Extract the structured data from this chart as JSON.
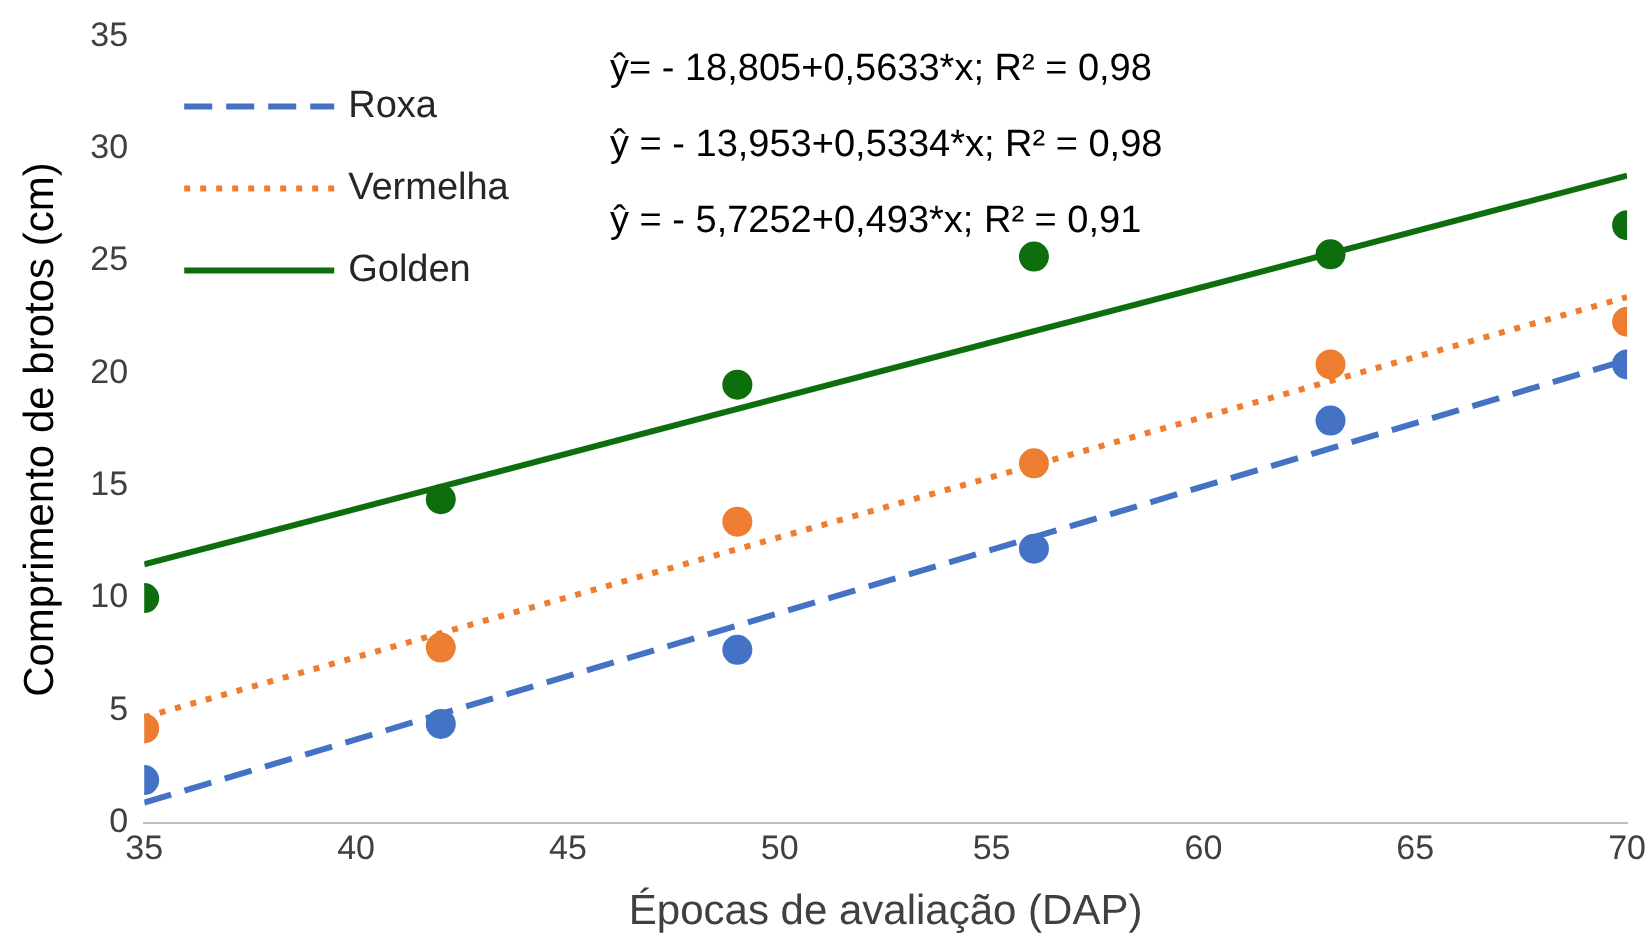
{
  "chart_data": {
    "type": "scatter",
    "xlabel": "Épocas de avaliação (DAP)",
    "ylabel": "Comprimento de brotos (cm)",
    "xlim": [
      35,
      70
    ],
    "xticks": [
      35,
      40,
      45,
      50,
      55,
      60,
      65,
      70
    ],
    "ylim": [
      0,
      35
    ],
    "yticks": [
      0,
      5,
      10,
      15,
      20,
      25,
      30,
      35
    ],
    "grid": false,
    "legend": "top left",
    "annotations": [
      "ŷ= - 18,805+0,5633*x; R² = 0,98",
      "ŷ = - 13,953+0,5334*x; R² = 0,98",
      "ŷ = - 5,7252+0,493*x; R² = 0,91"
    ],
    "series": [
      {
        "type": "scatter",
        "marker": "circle",
        "color": "#4472c4",
        "x": [
          35,
          42,
          49,
          56,
          63,
          70
        ],
        "values": [
          1.9,
          4.4,
          7.7,
          12.2,
          17.9,
          20.4
        ]
      },
      {
        "type": "scatter",
        "marker": "circle",
        "color": "#ed7d31",
        "x": [
          35,
          42,
          49,
          56,
          63,
          70
        ],
        "values": [
          4.2,
          7.8,
          13.4,
          16.0,
          20.4,
          22.3
        ]
      },
      {
        "type": "scatter",
        "marker": "circle",
        "color": "#0e6e0e",
        "x": [
          35,
          42,
          49,
          56,
          63,
          70
        ],
        "values": [
          10.0,
          14.4,
          19.5,
          25.2,
          25.3,
          26.6
        ]
      },
      {
        "type": "line",
        "name": "Roxa",
        "marker": "none",
        "line_style": "dashed",
        "color": "#4472c4",
        "x": [
          35,
          70
        ],
        "values": [
          0.9,
          20.6
        ]
      },
      {
        "type": "line",
        "name": "Vermelha",
        "marker": "none",
        "line_style": "dotted",
        "color": "#ed7d31",
        "x": [
          35,
          70
        ],
        "values": [
          4.7,
          23.4
        ]
      },
      {
        "type": "line",
        "name": "Golden",
        "marker": "none",
        "line_style": "solid",
        "color": "#0e6e0e",
        "x": [
          35,
          70
        ],
        "values": [
          11.5,
          28.8
        ]
      }
    ]
  }
}
